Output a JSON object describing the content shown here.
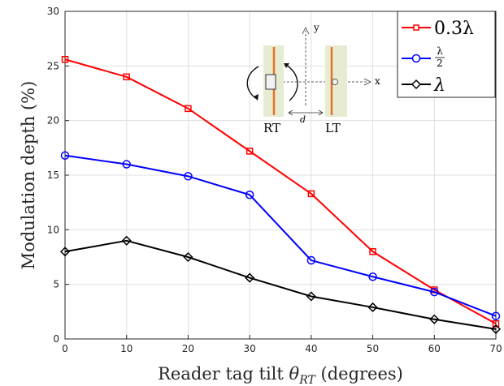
{
  "chart_data": {
    "type": "line",
    "xlabel_main": "Reader tag tilt ",
    "xlabel_symbol": "θ",
    "xlabel_subscript": "RT",
    "xlabel_unit": " (degrees)",
    "ylabel": "Modulation depth (%)",
    "xlim": [
      0,
      70
    ],
    "ylim": [
      0,
      30
    ],
    "x_ticks": [
      "0",
      "10",
      "20",
      "30",
      "40",
      "50",
      "60",
      "70"
    ],
    "y_ticks": [
      "0",
      "5",
      "10",
      "15",
      "20",
      "25",
      "30"
    ],
    "grid": true,
    "legend_position": "top-right",
    "x": [
      0,
      10,
      20,
      30,
      40,
      50,
      60,
      70
    ],
    "series": [
      {
        "name": "0.3λ",
        "legend_text": "0.3λ",
        "color": "#ff0000",
        "marker": "square",
        "values": [
          25.6,
          24.0,
          21.1,
          17.2,
          13.3,
          8.0,
          4.5,
          1.4
        ]
      },
      {
        "name": "λ/2",
        "legend_num": "λ",
        "legend_den": "2",
        "color": "#0000ff",
        "marker": "circle",
        "values": [
          16.8,
          16.0,
          14.9,
          13.2,
          7.2,
          5.7,
          4.3,
          2.1
        ]
      },
      {
        "name": "λ",
        "legend_text": "λ",
        "color": "#000000",
        "marker": "diamond",
        "values": [
          8.0,
          9.0,
          7.5,
          5.6,
          3.9,
          2.9,
          1.8,
          0.9
        ]
      }
    ]
  },
  "inset": {
    "axis_y_label": "y",
    "axis_x_label": "x",
    "left_tag_label": "RT",
    "right_tag_label": "LT",
    "distance_label": "d"
  }
}
